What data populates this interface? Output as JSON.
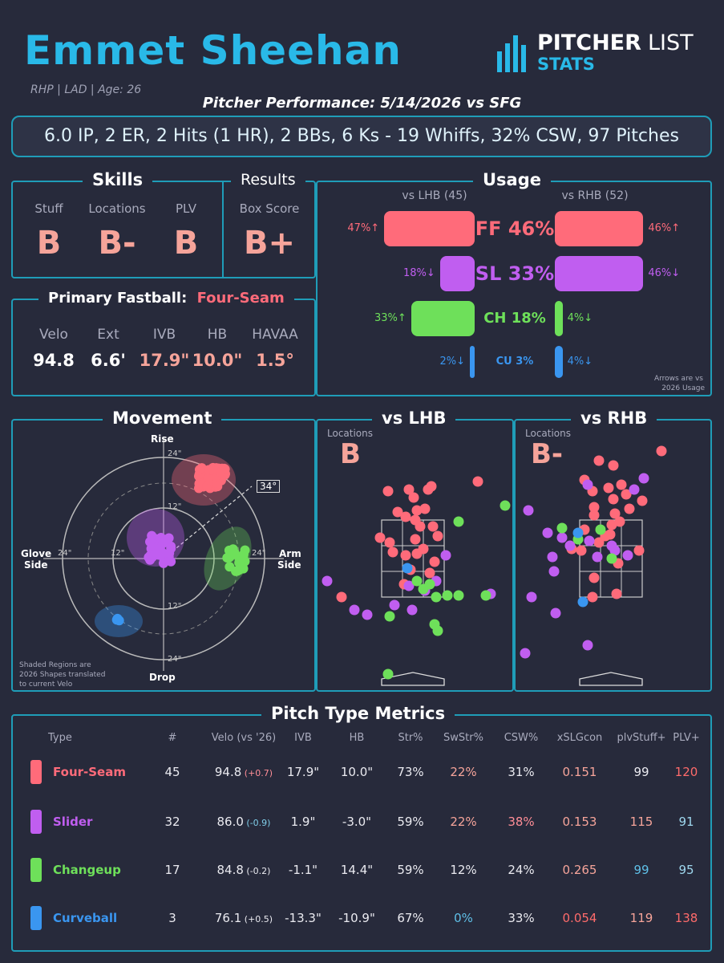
{
  "header": {
    "name": "Emmet Sheehan",
    "sub": "RHP | LAD | Age: 26",
    "logo_top_1": "PITCHER",
    "logo_top_2": "LIST",
    "logo_bottom": "STATS",
    "perf_title": "Pitcher Performance: 5/14/2026 vs SFG",
    "summary": "6.0 IP, 2 ER, 2 Hits (1 HR), 2 BBs, 6 Ks - 19 Whiffs, 32% CSW, 97 Pitches"
  },
  "skills": {
    "title": "Skills",
    "items": [
      {
        "label": "Stuff",
        "grade": "B"
      },
      {
        "label": "Locations",
        "grade": "B-"
      },
      {
        "label": "PLV",
        "grade": "B"
      }
    ]
  },
  "results": {
    "title": "Results",
    "label": "Box Score",
    "grade": "B+"
  },
  "fastball": {
    "title": "Primary Fastball:",
    "pitch": "Four-Seam",
    "stats": [
      {
        "label": "Velo",
        "value": "94.8",
        "color": "#ffffff"
      },
      {
        "label": "Ext",
        "value": "6.6'",
        "color": "#ffffff"
      },
      {
        "label": "IVB",
        "value": "17.9\"",
        "color": "#f6a49a"
      },
      {
        "label": "HB",
        "value": "10.0\"",
        "color": "#f6a49a"
      },
      {
        "label": "HAVAA",
        "value": "1.5°",
        "color": "#f6a49a"
      }
    ]
  },
  "usage": {
    "title": "Usage",
    "lhb_header": "vs LHB (45)",
    "rhb_header": "vs RHB (52)",
    "note_line1": "Arrows are vs",
    "note_line2": "2026 Usage",
    "rows": [
      {
        "label": "FF 46%",
        "lhb": "47%↑",
        "rhb": "46%↑",
        "lhb_val": 47,
        "rhb_val": 46,
        "color": "#ff6b7a"
      },
      {
        "label": "SL 33%",
        "lhb": "18%↓",
        "rhb": "46%↓",
        "lhb_val": 18,
        "rhb_val": 46,
        "color": "#c05ef0"
      },
      {
        "label": "CH 18%",
        "lhb": "33%↑",
        "rhb": "4%↓",
        "lhb_val": 33,
        "rhb_val": 4,
        "color": "#6ee05a"
      },
      {
        "label": "CU 3%",
        "lhb": "2%↓",
        "rhb": "4%↓",
        "lhb_val": 2,
        "rhb_val": 4,
        "color": "#3a96f0"
      }
    ]
  },
  "movement": {
    "title": "Movement",
    "rise": "Rise",
    "drop": "Drop",
    "glove": "Glove",
    "glove2": "Side",
    "arm": "Arm",
    "arm2": "Side",
    "arm_angle": "34°",
    "ring24": "24\"",
    "ring12": "12\"",
    "note1": "Shaded Regions are",
    "note2": "2026 Shapes translated",
    "note3": "to current Velo"
  },
  "lhb": {
    "title": "vs LHB",
    "loc_label": "Locations",
    "grade": "B"
  },
  "rhb": {
    "title": "vs RHB",
    "loc_label": "Locations",
    "grade": "B-"
  },
  "metrics": {
    "title": "Pitch Type Metrics",
    "columns": [
      "Type",
      "#",
      "Velo (vs '26)",
      "IVB",
      "HB",
      "Str%",
      "SwStr%",
      "CSW%",
      "xSLGcon",
      "plvStuff+",
      "PLV+"
    ],
    "rows": [
      {
        "color": "#ff6b7a",
        "type": "Four-Seam",
        "n": "45",
        "velo": "94.8",
        "delta": "(+0.7)",
        "deltacolor": "#ff8e97",
        "ivb": "17.9\"",
        "hb": "10.0\"",
        "str": "73%",
        "sw": "22%",
        "swc": "#f6a49a",
        "csw": "31%",
        "cswc": "#eaeaf0",
        "xslg": "0.151",
        "xslgc": "#f6a49a",
        "stuff": "99",
        "stuffc": "#eaeaf0",
        "plv": "120",
        "plvc": "#ff6b6b"
      },
      {
        "color": "#c05ef0",
        "type": "Slider",
        "n": "32",
        "velo": "86.0",
        "delta": "(-0.9)",
        "deltacolor": "#7fcde8",
        "ivb": "1.9\"",
        "hb": "-3.0\"",
        "str": "59%",
        "sw": "22%",
        "swc": "#f6a49a",
        "csw": "38%",
        "cswc": "#ff8e97",
        "xslg": "0.153",
        "xslgc": "#f6a49a",
        "stuff": "115",
        "stuffc": "#f6a49a",
        "plv": "91",
        "plvc": "#9ed7ee"
      },
      {
        "color": "#6ee05a",
        "type": "Changeup",
        "n": "17",
        "velo": "84.8",
        "delta": "(-0.2)",
        "deltacolor": "#eaeaf0",
        "ivb": "-1.1\"",
        "hb": "14.4\"",
        "str": "59%",
        "sw": "12%",
        "swc": "#eaeaf0",
        "csw": "24%",
        "cswc": "#eaeaf0",
        "xslg": "0.265",
        "xslgc": "#f6a49a",
        "stuff": "99",
        "stuffc": "#5fc0e8",
        "plv": "95",
        "plvc": "#9ed7ee"
      },
      {
        "color": "#3a96f0",
        "type": "Curveball",
        "n": "3",
        "velo": "76.1",
        "delta": "(+0.5)",
        "deltacolor": "#eaeaf0",
        "ivb": "-13.3\"",
        "hb": "-10.9\"",
        "str": "67%",
        "sw": "0%",
        "swc": "#5fc0e8",
        "csw": "33%",
        "cswc": "#eaeaf0",
        "xslg": "0.054",
        "xslgc": "#ff6b6b",
        "stuff": "119",
        "stuffc": "#f6a49a",
        "plv": "138",
        "plvc": "#ff6b6b"
      }
    ]
  }
}
